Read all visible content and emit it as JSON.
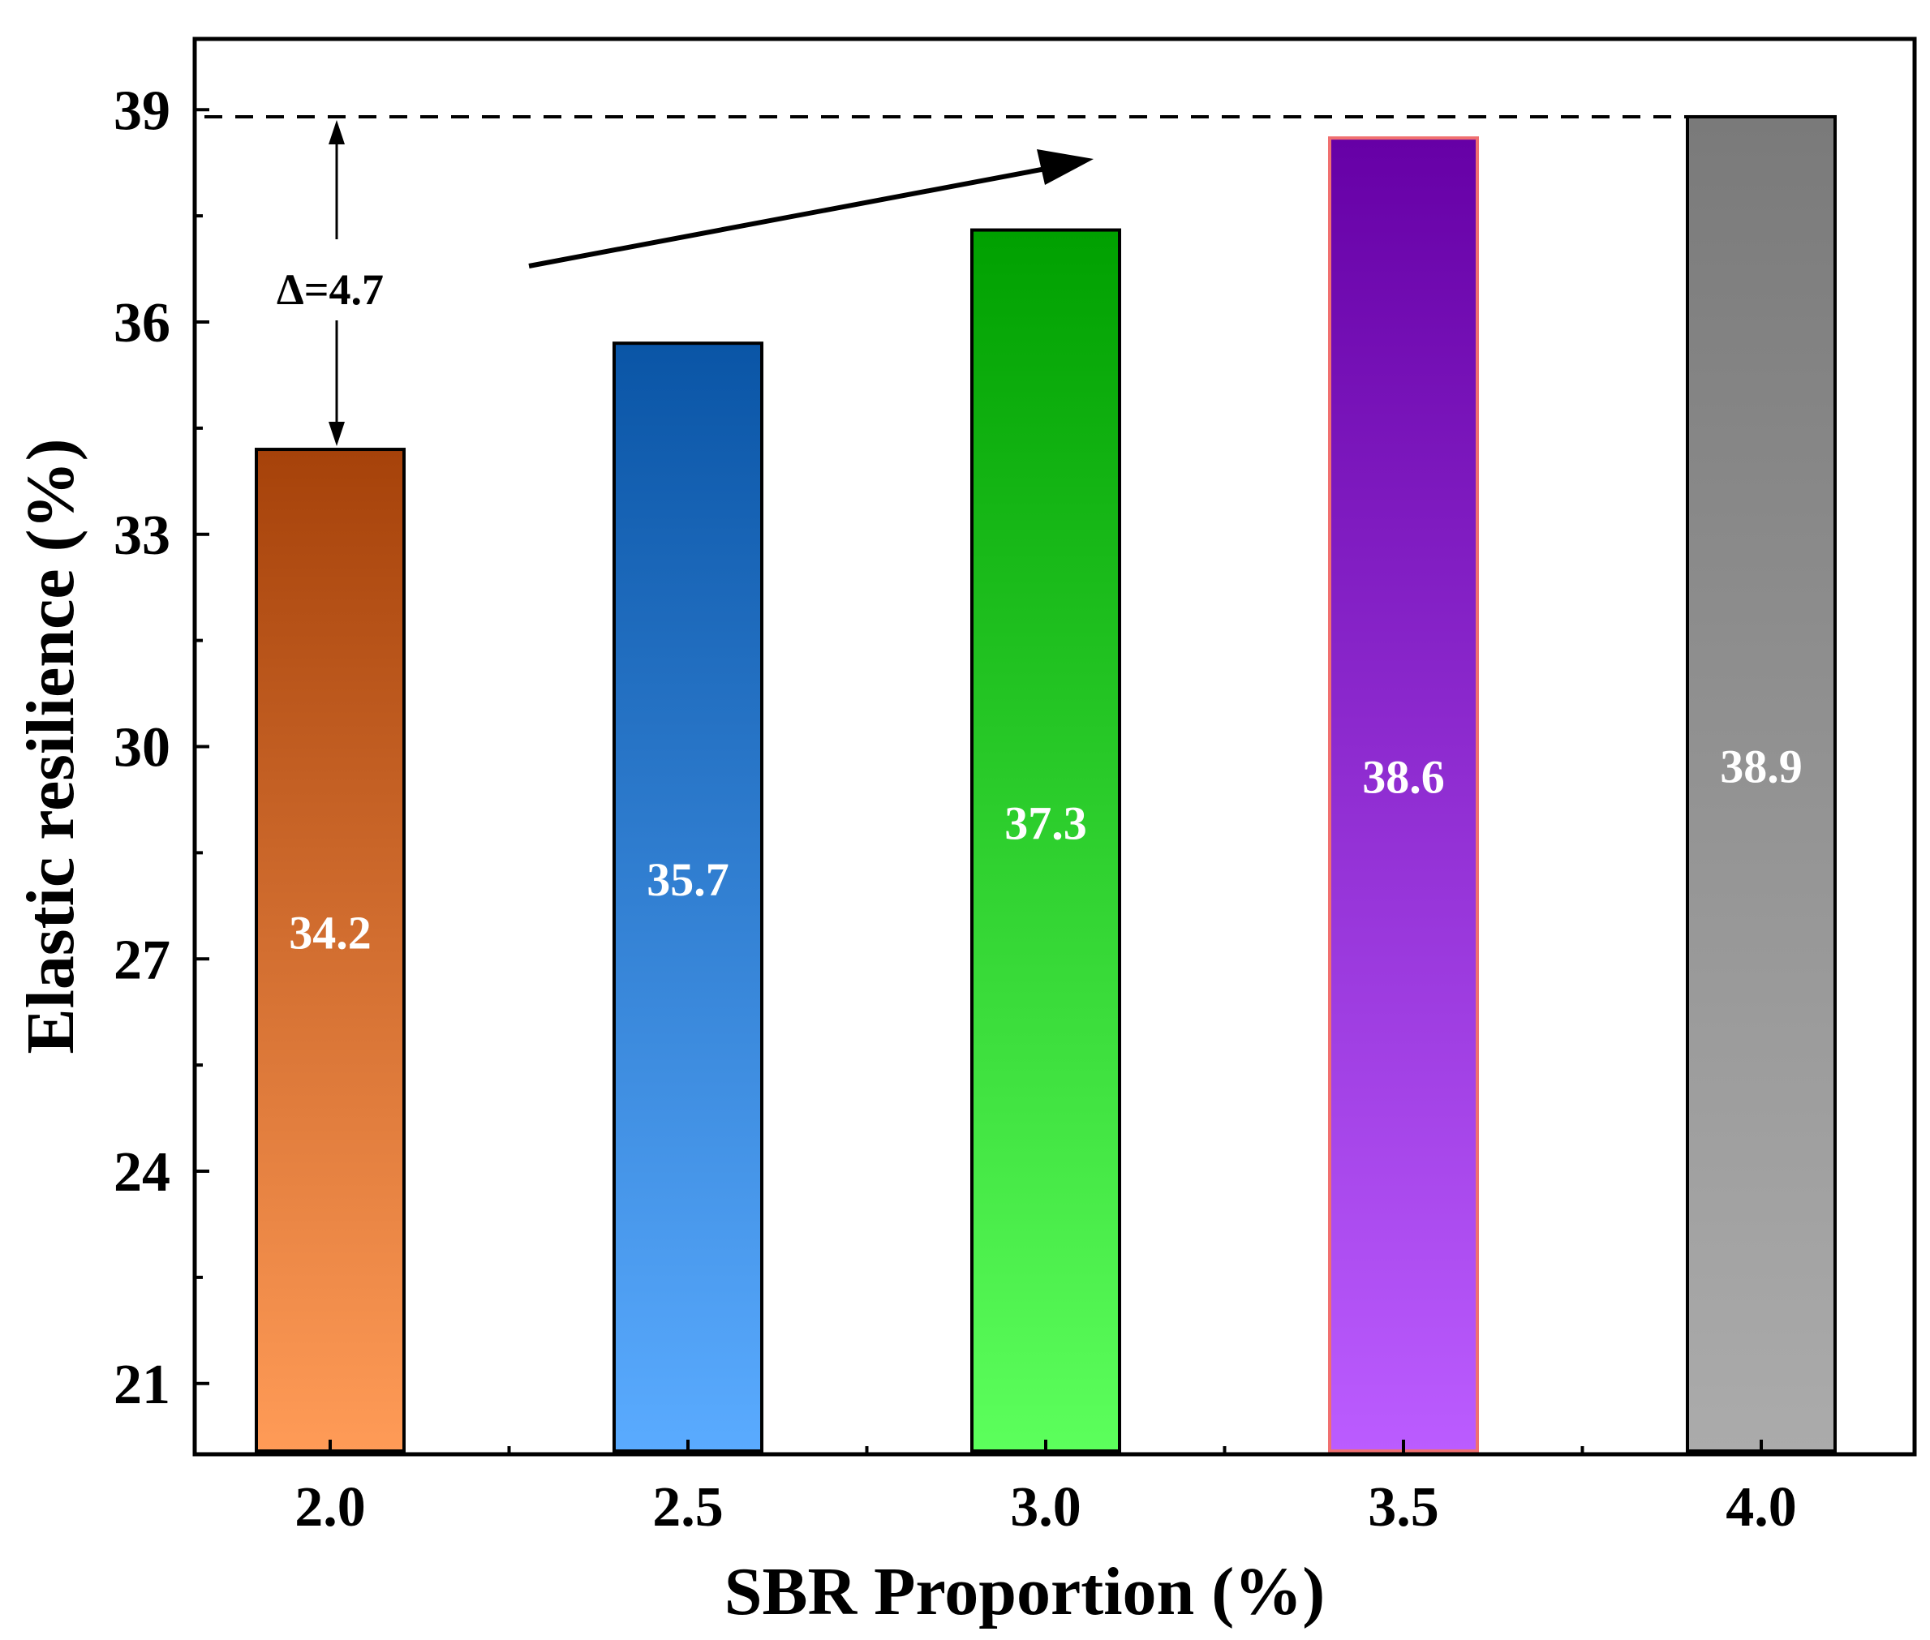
{
  "chart_data": {
    "type": "bar",
    "title": "",
    "xlabel": "SBR Proportion (%)",
    "ylabel": "Elastic resilience (%)",
    "categories": [
      "2.0",
      "2.5",
      "3.0",
      "3.5",
      "4.0"
    ],
    "values": [
      34.2,
      35.7,
      37.3,
      38.6,
      38.9
    ],
    "value_labels": [
      "34.2",
      "35.7",
      "37.3",
      "38.6",
      "38.9"
    ],
    "ylim": [
      20,
      40
    ],
    "yticks": [
      21,
      24,
      27,
      30,
      33,
      36,
      39
    ],
    "ytick_labels": [
      "21",
      "24",
      "27",
      "30",
      "33",
      "36",
      "39"
    ],
    "grid": false,
    "bar_colors": [
      {
        "top": "#A6420A",
        "bottom": "#FF9B57",
        "edge": "#000000"
      },
      {
        "top": "#0A55A6",
        "bottom": "#5AABFF",
        "edge": "#000000"
      },
      {
        "top": "#00A000",
        "bottom": "#5CFF5C",
        "edge": "#000000"
      },
      {
        "top": "#6600A6",
        "bottom": "#BB5CFF",
        "edge": "#F07070"
      },
      {
        "top": "#7A7A7A",
        "bottom": "#ABABAB",
        "edge": "#000000"
      }
    ],
    "annotations": {
      "delta_label": "Δ=4.7",
      "reference_value": 38.9,
      "delta_from": 34.2,
      "trend_arrow": "increasing trend"
    }
  }
}
